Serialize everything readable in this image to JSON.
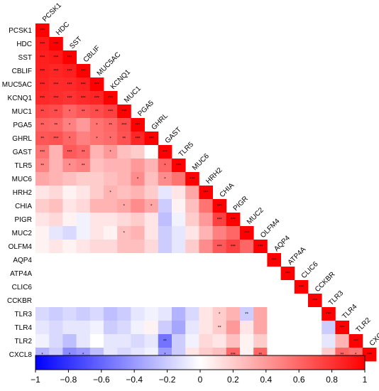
{
  "chart_data": {
    "type": "heatmap",
    "variables": [
      "PCSK1",
      "HDC",
      "SST",
      "CBLIF",
      "MUC5AC",
      "KCNQ1",
      "MUC1",
      "PGA5",
      "GHRL",
      "GAST",
      "TLR5",
      "MUC6",
      "HRH2",
      "CHIA",
      "PIGR",
      "MUC2",
      "OLFM4",
      "AQP4",
      "ATP4A",
      "CLIC6",
      "CCKBR",
      "TLR3",
      "TLR4",
      "TLR2",
      "CXCL8"
    ],
    "matrix": [
      [
        1.0
      ],
      [
        0.9,
        1.0
      ],
      [
        0.88,
        0.9,
        1.0
      ],
      [
        0.87,
        0.85,
        0.88,
        1.0
      ],
      [
        0.86,
        0.83,
        0.84,
        0.87,
        1.0
      ],
      [
        0.84,
        0.82,
        0.8,
        0.83,
        0.86,
        1.0
      ],
      [
        0.72,
        0.7,
        0.6,
        0.66,
        0.7,
        0.75,
        1.0
      ],
      [
        0.62,
        0.6,
        0.5,
        0.4,
        0.55,
        0.6,
        0.7,
        1.0
      ],
      [
        0.66,
        0.68,
        0.6,
        0.5,
        0.55,
        0.58,
        0.68,
        0.85,
        1.0
      ],
      [
        0.55,
        0.3,
        0.65,
        0.6,
        0.3,
        0.4,
        0.25,
        0.2,
        0.0,
        1.0
      ],
      [
        0.48,
        0.3,
        0.45,
        0.5,
        0.25,
        0.3,
        0.3,
        0.4,
        0.3,
        0.6,
        1.0
      ],
      [
        0.35,
        0.3,
        0.25,
        0.2,
        0.2,
        0.25,
        0.3,
        0.45,
        0.25,
        0.45,
        0.55,
        1.0
      ],
      [
        0.1,
        0.15,
        0.05,
        0.1,
        0.2,
        0.3,
        0.25,
        0.3,
        0.2,
        -0.1,
        0.1,
        0.35,
        1.0
      ],
      [
        0.2,
        0.25,
        0.1,
        0.15,
        0.3,
        0.3,
        0.35,
        0.45,
        0.35,
        -0.2,
        0.05,
        0.25,
        0.55,
        1.0
      ],
      [
        0.1,
        0.15,
        0.05,
        -0.05,
        0.1,
        0.1,
        0.15,
        0.2,
        0.1,
        -0.25,
        -0.05,
        0.2,
        0.4,
        0.75,
        1.0
      ],
      [
        0.05,
        -0.1,
        -0.15,
        -0.05,
        0.1,
        0.05,
        0.25,
        0.3,
        0.1,
        -0.2,
        -0.1,
        0.1,
        0.3,
        0.5,
        0.6,
        1.0
      ],
      [
        0.05,
        0.1,
        0.05,
        0.1,
        0.15,
        0.15,
        0.25,
        0.25,
        0.15,
        -0.2,
        -0.1,
        0.2,
        0.45,
        0.65,
        0.75,
        0.6,
        1.0
      ],
      [
        null,
        null,
        null,
        null,
        null,
        null,
        null,
        null,
        null,
        null,
        null,
        null,
        null,
        null,
        null,
        null,
        null,
        1.0
      ],
      [
        null,
        null,
        null,
        null,
        null,
        null,
        null,
        null,
        null,
        null,
        null,
        null,
        null,
        null,
        null,
        null,
        null,
        null,
        1.0
      ],
      [
        null,
        null,
        null,
        null,
        null,
        null,
        null,
        null,
        null,
        null,
        null,
        null,
        null,
        null,
        null,
        null,
        null,
        null,
        null,
        1.0
      ],
      [
        null,
        null,
        null,
        null,
        null,
        null,
        null,
        null,
        null,
        null,
        null,
        null,
        null,
        null,
        null,
        null,
        null,
        null,
        null,
        null,
        1.0
      ],
      [
        -0.15,
        -0.2,
        -0.15,
        -0.2,
        -0.15,
        -0.25,
        -0.2,
        -0.1,
        -0.05,
        -0.1,
        -0.3,
        -0.15,
        0.1,
        0.2,
        0.3,
        -0.2,
        0.35,
        null,
        null,
        null,
        null,
        1.0
      ],
      [
        -0.1,
        -0.15,
        -0.1,
        -0.1,
        -0.05,
        -0.2,
        -0.15,
        -0.05,
        0.05,
        -0.2,
        -0.35,
        -0.1,
        0.1,
        0.2,
        0.4,
        0.1,
        0.35,
        null,
        null,
        null,
        null,
        -0.2,
        1.0
      ],
      [
        -0.05,
        -0.15,
        -0.25,
        -0.1,
        0.0,
        -0.1,
        -0.1,
        -0.15,
        -0.1,
        -0.55,
        -0.2,
        -0.05,
        0.15,
        0.1,
        0.25,
        0.05,
        0.2,
        null,
        null,
        null,
        null,
        -0.1,
        0.3,
        1.0
      ],
      [
        -0.3,
        -0.2,
        -0.45,
        -0.4,
        -0.25,
        -0.1,
        -0.15,
        -0.1,
        -0.05,
        -0.4,
        -0.2,
        0.1,
        0.2,
        0.25,
        0.6,
        0.05,
        0.6,
        null,
        null,
        null,
        null,
        0.2,
        0.6,
        0.55,
        1.0
      ]
    ],
    "significance": [
      [
        "***"
      ],
      [
        "***",
        "***"
      ],
      [
        "***",
        "***",
        "***"
      ],
      [
        "***",
        "***",
        "***",
        "***"
      ],
      [
        "***",
        "***",
        "***",
        "***",
        "***"
      ],
      [
        "***",
        "***",
        "***",
        "***",
        "***",
        "***"
      ],
      [
        "**",
        "**",
        "*",
        "**",
        "**",
        "***",
        "***"
      ],
      [
        "**",
        "**",
        "*",
        "",
        "*",
        "**",
        "***",
        "***"
      ],
      [
        "**",
        "***",
        "*",
        "",
        "*",
        "*",
        "**",
        "***",
        "***"
      ],
      [
        "***",
        "",
        "***",
        "**",
        "",
        "*",
        "",
        "",
        "",
        "***"
      ],
      [
        "**",
        "",
        "*",
        "**",
        "",
        "",
        "",
        "",
        "",
        "*",
        "***"
      ],
      [
        "",
        "",
        "",
        "",
        "",
        "",
        "",
        "*",
        "",
        "*",
        "",
        "***"
      ],
      [
        "",
        "",
        "",
        "",
        "",
        "*",
        "",
        "",
        "",
        "",
        "",
        "",
        "***"
      ],
      [
        "",
        "",
        "",
        "",
        "",
        "",
        "*",
        "",
        "*",
        "",
        "",
        "",
        "",
        "***"
      ],
      [
        "",
        "",
        "",
        "",
        "",
        "",
        "",
        "",
        "",
        "",
        "",
        "",
        "",
        "***",
        "***"
      ],
      [
        "",
        "",
        "",
        "",
        "",
        "",
        "*",
        "",
        "",
        "",
        "",
        "",
        "",
        "",
        "",
        "***"
      ],
      [
        "",
        "",
        "",
        "",
        "",
        "",
        "",
        "",
        "",
        "",
        "",
        "",
        "",
        "***",
        "***",
        "",
        "***"
      ],
      [
        "",
        "",
        "",
        "",
        "",
        "",
        "",
        "",
        "",
        "",
        "",
        "",
        "",
        "",
        "",
        "",
        "",
        "***"
      ],
      [
        "",
        "",
        "",
        "",
        "",
        "",
        "",
        "",
        "",
        "",
        "",
        "",
        "",
        "",
        "",
        "",
        "",
        "",
        "***"
      ],
      [
        "",
        "",
        "",
        "",
        "",
        "",
        "",
        "",
        "",
        "",
        "",
        "",
        "",
        "",
        "",
        "",
        "",
        "",
        "",
        "***"
      ],
      [
        "",
        "",
        "",
        "",
        "",
        "",
        "",
        "",
        "",
        "",
        "",
        "",
        "",
        "",
        "",
        "",
        "",
        "",
        "",
        "",
        "***"
      ],
      [
        "",
        "",
        "",
        "",
        "",
        "",
        "",
        "",
        "",
        "",
        "",
        "",
        "",
        "*",
        "",
        "**",
        "",
        "",
        "",
        "",
        "",
        "***"
      ],
      [
        "",
        "",
        "",
        "",
        "",
        "",
        "",
        "",
        "",
        "",
        "",
        "",
        "",
        "**",
        "",
        "",
        "",
        "",
        "",
        "",
        "",
        "",
        "***"
      ],
      [
        "",
        "",
        "",
        "",
        "",
        "",
        "",
        "",
        "",
        "**",
        "",
        "",
        "",
        "",
        "",
        "",
        "",
        "",
        "",
        "",
        "",
        "",
        "",
        "***"
      ],
      [
        "*",
        "",
        "*",
        "*",
        "",
        "",
        "",
        "",
        "",
        "*",
        "",
        "",
        "",
        "",
        "***",
        "",
        "**",
        "",
        "",
        "",
        "",
        "",
        "**",
        "*",
        "***"
      ]
    ],
    "color_scale": {
      "min": -1,
      "max": 1,
      "low_color": "#0000FF",
      "mid_color": "#FFFFFF",
      "high_color": "#FF0000",
      "ticks": [
        -1,
        -0.8,
        -0.6,
        -0.4,
        -0.2,
        0,
        0.2,
        0.4,
        0.6,
        0.8,
        1
      ],
      "tick_labels": [
        "−1",
        "−0.8",
        "−0.6",
        "−0.4",
        "−0.2",
        "0",
        "0.2",
        "0.4",
        "0.6",
        "0.8",
        "1"
      ]
    },
    "legend_placement": "bottom"
  }
}
